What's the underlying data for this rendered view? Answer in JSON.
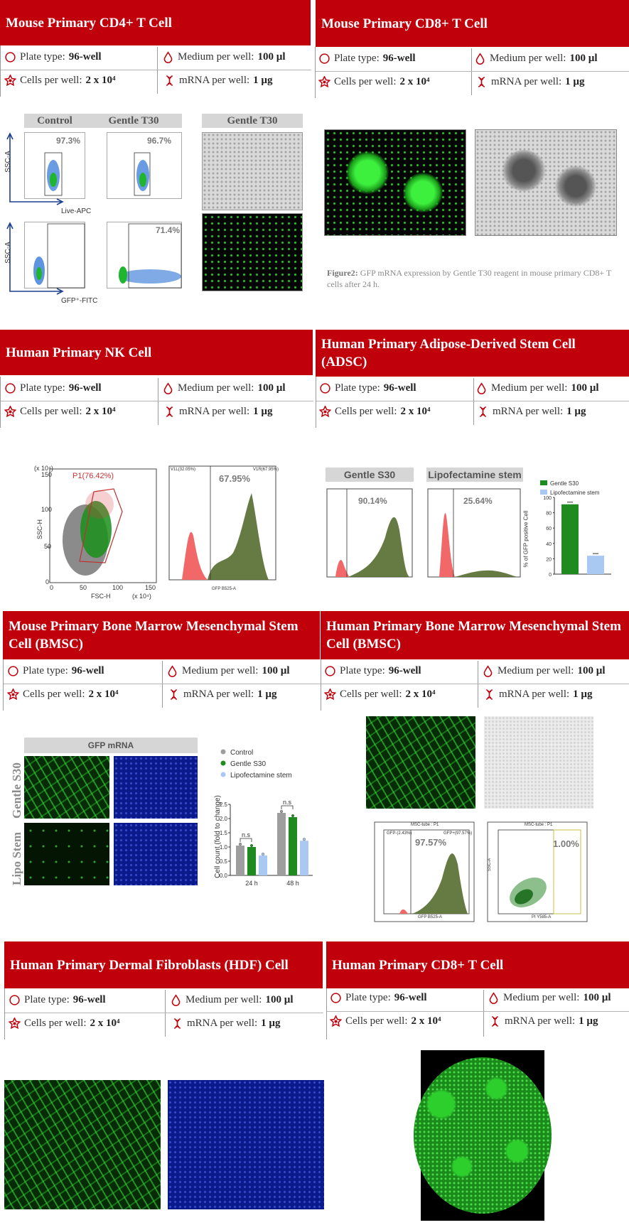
{
  "sections": [
    {
      "title": "Mouse Primary CD4+ T Cell"
    },
    {
      "title": "Mouse Primary CD8+ T Cell"
    },
    {
      "title": "Human Primary NK Cell"
    },
    {
      "title": "Human Primary Adipose-Derived Stem Cell (ADSC)"
    },
    {
      "title": "Mouse Primary Bone Marrow Mesenchymal Stem Cell (BMSC)"
    },
    {
      "title": "Human Primary Bone Marrow Mesenchymal Stem Cell (BMSC)"
    },
    {
      "title": "Human Primary Dermal Fibroblasts (HDF) Cell"
    },
    {
      "title": "Human Primary CD8+ T Cell"
    }
  ],
  "info": {
    "plate_label": "Plate type: ",
    "plate_value": "96-well",
    "medium_label": "Medium per well: ",
    "medium_value": "100 µl",
    "cells_label": "Cells per well: ",
    "cells_value": "2 x 10⁴",
    "mrna_label": "mRNA per well: ",
    "mrna_value": "1 µg"
  },
  "cd4": {
    "control_label": "Control",
    "gentle_label": "Gentle T30",
    "gentle_label_2": "Gentle T30",
    "pct_1": "97.3%",
    "pct_2": "96.7%",
    "pct_3": "71.4%",
    "axis_ssc": "SSC-A",
    "axis_live": "Live-APC",
    "axis_ssc_2": "SSC-A",
    "axis_gfp": "GFP⁺-FITC"
  },
  "cd8": {
    "caption_bold": "Figure2:",
    "caption_text": " GFP mRNA expression by Gentle T30 reagent in mouse primary CD8+ T cells after 24 h."
  },
  "nk": {
    "gate_label": "P1(76.42%)",
    "y_unit": "(x 10⁴)",
    "x_unit": "(x 10⁴)",
    "y_axis": "SSC-H",
    "x_axis": "FSC-H",
    "y_ticks": [
      "150",
      "100",
      "50",
      "0"
    ],
    "x_ticks": [
      "0",
      "50",
      "100",
      "150"
    ],
    "hist_pct": "67.95%",
    "hist_left_label": "V1L(32.05%)",
    "hist_right_label": "V1R(67.95%)",
    "hist_x_axis": "GFP B525-A"
  },
  "adsc": {
    "label_1": "Gentle S30",
    "label_2": "Lipofectamine stem",
    "pct_1": "90.14%",
    "pct_2": "25.64%",
    "chart_ylabel": "% of GFP positive Cell",
    "hist_x_axis": "GFP B525-A"
  },
  "mbmsc": {
    "gfp_label": "GFP mRNA",
    "row_1": "Gentle S30",
    "row_2": "Lipo Stem",
    "chart_ylabel": "Cell count (fold to change)",
    "ns_label": "n.s",
    "ns_label_2": "n.s"
  },
  "hbmsc": {
    "pct_1": "97.57%",
    "pct_2": "1.00%",
    "hist_title": "MSC-tube : P1",
    "scatter_title": "MSC-tube : P1",
    "hist_x_axis": "GFP B525-A",
    "scatter_x_axis": "PI Y585-A",
    "scatter_y_axis": "SSC-A",
    "gate_left": "GFP-(2.43%)",
    "gate_right": "GFP+(97.57%)"
  },
  "colors": {
    "header": "#c0000b",
    "gentle": "#1f8a1f",
    "lipo": "#a9c8f2",
    "control": "#9e9e9e"
  },
  "chart_data": [
    {
      "type": "bar",
      "categories": [
        ""
      ],
      "series": [
        {
          "name": "Gentle S30",
          "values": [
            91
          ]
        },
        {
          "name": "Lipofectamine stem",
          "values": [
            24
          ]
        }
      ],
      "title": "",
      "xlabel": "",
      "ylabel": "% of GFP positive Cell",
      "ylim": [
        0,
        100
      ],
      "yticks": [
        "0",
        "20",
        "40",
        "60",
        "80",
        "100"
      ],
      "legend": "top-right"
    },
    {
      "type": "bar",
      "categories": [
        "24 h",
        "48 h"
      ],
      "series": [
        {
          "name": "Control",
          "values": [
            1.05,
            2.2
          ]
        },
        {
          "name": "Gentle S30",
          "values": [
            1.0,
            2.05
          ]
        },
        {
          "name": "Lipofectamine stem",
          "values": [
            0.7,
            1.22
          ]
        }
      ],
      "title": "",
      "xlabel": "",
      "ylabel": "Cell count (fold to change)",
      "ylim": [
        0,
        2.5
      ],
      "yticks": [
        "0.0",
        "0.5",
        "1.0",
        "1.5",
        "2.0",
        "2.5"
      ],
      "legend": "top"
    }
  ]
}
